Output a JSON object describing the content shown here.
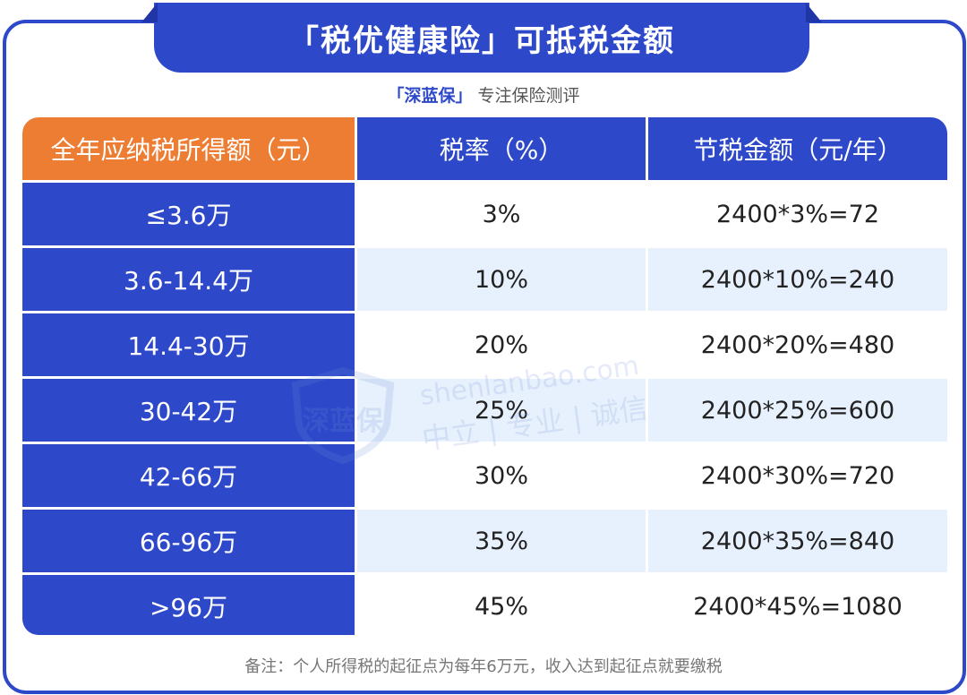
{
  "title": "「税优健康险」可抵税金额",
  "subtitle": {
    "brand": "「深蓝保」",
    "tagline": "专注保险测评"
  },
  "table": {
    "headers": [
      "全年应纳税所得额（元）",
      "税率（%）",
      "节税金额（元/年）"
    ],
    "rows": [
      [
        "≤3.6万",
        "3%",
        "2400*3%=72"
      ],
      [
        "3.6-14.4万",
        "10%",
        "2400*10%=240"
      ],
      [
        "14.4-30万",
        "20%",
        "2400*20%=480"
      ],
      [
        "30-42万",
        "25%",
        "2400*25%=600"
      ],
      [
        "42-66万",
        "30%",
        "2400*30%=720"
      ],
      [
        "66-96万",
        "35%",
        "2400*35%=840"
      ],
      [
        ">96万",
        "45%",
        "2400*45%=1080"
      ]
    ]
  },
  "watermark": {
    "text1": "shenlanbao.com",
    "text2": "中立 | 专业 | 诚信",
    "logo": "深蓝保"
  },
  "footnote": "备注：个人所得税的起征点为每年6万元，收入达到起征点就要缴税",
  "colors": {
    "primary": "#2d48c9",
    "accent": "#ec7d33",
    "stripe": "#e7f1fd"
  }
}
